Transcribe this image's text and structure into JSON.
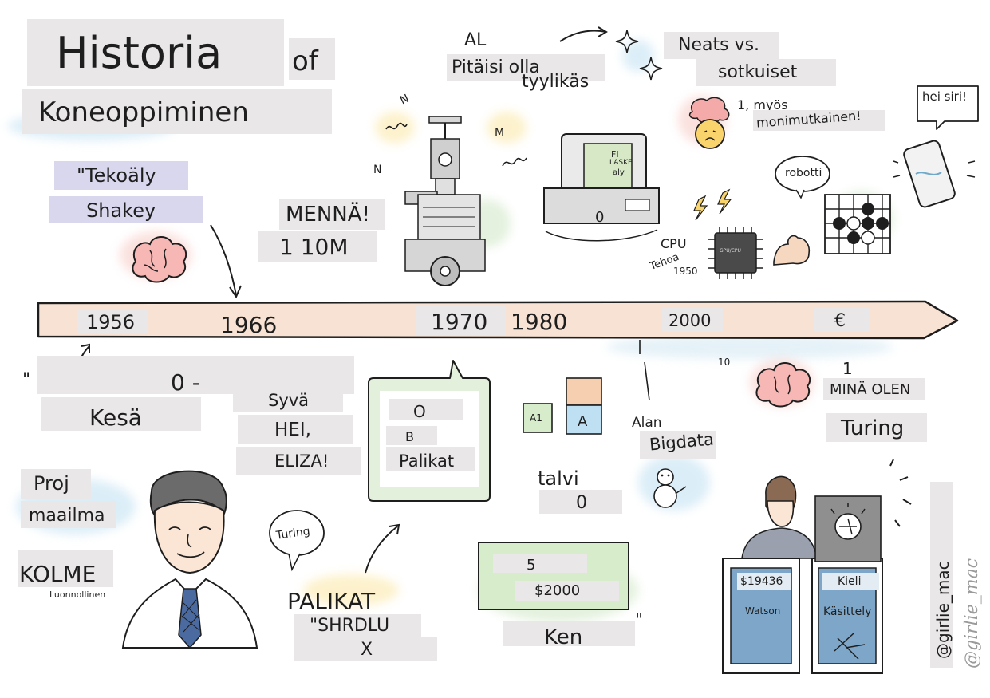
{
  "title": {
    "main": "Historia",
    "of": "of",
    "sub": "Koneoppiminen"
  },
  "timeline": {
    "years": [
      "1956",
      "1966",
      "1970",
      "1980",
      "2000",
      "€"
    ]
  },
  "top_labels": {
    "tekoaly": "\"Tekoäly",
    "shakey": "Shakey",
    "menna": "MENNÄ!",
    "ten_m": "1 10M",
    "al": "AL",
    "pitaisi": "Pitäisi olla",
    "tyylikas": "tyylikäs",
    "neats": "Neats vs.",
    "sotkuiset": "sotkuiset",
    "myos": "1, myös",
    "monimutkainen": "monimutkainen!",
    "hei_siri": "hei siri!",
    "robotti": "robotti",
    "cpu": "CPU",
    "tehoa": "Tehoa",
    "year_1950": "1950",
    "screen_fi": "FI",
    "screen_laske": "LASKE",
    "screen_aly": "aly",
    "computer_zero": "0",
    "chip_text": "GPU/CPU",
    "z_n": "N",
    "z_m": "M",
    "z_n2": "N"
  },
  "bottom_labels": {
    "quote_mark": "\"",
    "zero_dash": "0 -",
    "kesa": "Kesä",
    "syva": "Syvä",
    "hei": "HEI,",
    "eliza": "ELIZA!",
    "o": "O",
    "b": "B",
    "palikat_box": "Palikat",
    "a1": "A1",
    "a": "A",
    "talvi": "talvi",
    "talvi_zero": "0",
    "alan": "Alan",
    "bigdata": "Bigdata",
    "ten": "10",
    "one": "1",
    "mina_olen": "MINÄ OLEN",
    "turing_right": "Turing",
    "proj": "Proj",
    "maailma": "maailma",
    "kolme": "KOLME",
    "luonnollinen": "Luonnollinen",
    "turing_bubble": "Turing",
    "palikat": "PALIKAT",
    "shrdlu": "\"SHRDLU",
    "x": "X",
    "five": "5",
    "prize": "$2000",
    "ken": "Ken",
    "close_quote": "\"",
    "podium_left_amount": "$19436",
    "podium_left_name": "Watson",
    "podium_right_line1": "Kieli",
    "podium_right_line2": "Käsittely"
  },
  "credits": {
    "handle": "@girlie_mac",
    "signature": "@girlie_mac"
  },
  "icons": [
    "brain-icon",
    "robot-shakey-icon",
    "computer-icon",
    "exploding-head-icon",
    "sparkle-icon",
    "lightning-icon",
    "cpu-chip-icon",
    "flexed-arm-icon",
    "phone-icon",
    "go-board-icon",
    "snowman-icon",
    "person-portrait-icon",
    "jeopardy-podium-icon",
    "watson-avatar-icon",
    "toy-blocks-icon",
    "arrow-icon"
  ],
  "colors": {
    "timeline_fill": "#f8e2d3",
    "label_bg": "#e9e7e7",
    "tag_bg": "#d9d7ee",
    "wash_blue": "#bfe0f2",
    "wash_pink": "#f6c9c3",
    "wash_yellow": "#fbe7a3",
    "wash_green": "#cfe6c4",
    "ink": "#1e1e1e"
  }
}
